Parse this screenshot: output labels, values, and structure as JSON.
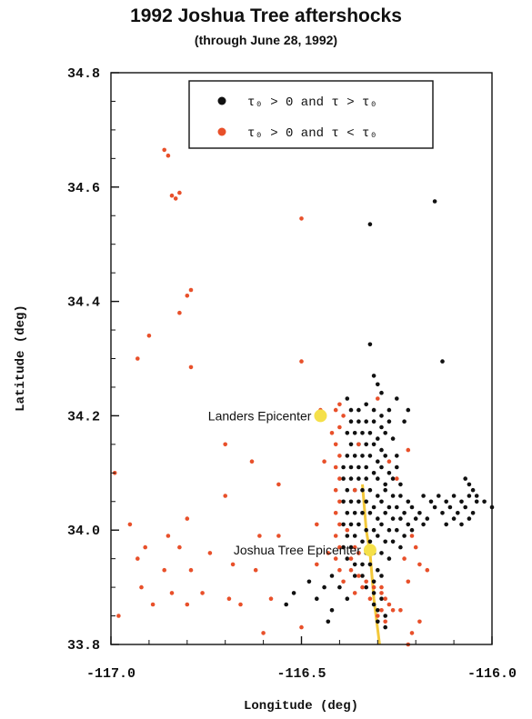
{
  "chart_data": {
    "type": "scatter",
    "title": "1992 Joshua Tree aftershocks",
    "subtitle": "(through June 28, 1992)",
    "xlabel": "Longitude (deg)",
    "ylabel": "Latitude (deg)",
    "xlim": [
      -117.0,
      -116.0
    ],
    "ylim": [
      33.8,
      34.8
    ],
    "xticks": [
      {
        "value": -117.0,
        "label": "-117.0"
      },
      {
        "value": -116.5,
        "label": "-116.5"
      },
      {
        "value": -116.0,
        "label": "-116.0"
      }
    ],
    "yticks": [
      {
        "value": 33.8,
        "label": "33.8"
      },
      {
        "value": 34.0,
        "label": "34.0"
      },
      {
        "value": 34.2,
        "label": "34.2"
      },
      {
        "value": 34.4,
        "label": "34.4"
      },
      {
        "value": 34.6,
        "label": "34.6"
      },
      {
        "value": 34.8,
        "label": "34.8"
      }
    ],
    "legend": {
      "position": "top-right",
      "entries": [
        {
          "label": "τ₀ > 0 and τ > τ₀",
          "color": "#111111"
        },
        {
          "label": "τ₀ > 0 and τ < τ₀",
          "color": "#e8502a"
        }
      ]
    },
    "colors": {
      "black": "#111111",
      "red": "#e8502a",
      "epicenter": "#f5e04a",
      "fault": "#f3c83a"
    },
    "annotations": [
      {
        "text": "Landers Epicenter",
        "x": -116.45,
        "y": 34.2
      },
      {
        "text": "Joshua Tree Epicenter",
        "x": -116.32,
        "y": 33.965
      }
    ],
    "epicenters": [
      {
        "name": "Landers",
        "x": -116.45,
        "y": 34.2
      },
      {
        "name": "Joshua Tree",
        "x": -116.32,
        "y": 33.965
      }
    ],
    "fault_line": {
      "x": [
        -116.34,
        -116.33,
        -116.32,
        -116.31,
        -116.295
      ],
      "y": [
        34.08,
        34.0,
        33.96,
        33.88,
        33.8
      ]
    },
    "series": [
      {
        "color": "black",
        "points": [
          [
            -116.15,
            34.575
          ],
          [
            -116.32,
            34.535
          ],
          [
            -116.32,
            34.325
          ],
          [
            -116.13,
            34.295
          ],
          [
            -116.31,
            34.27
          ],
          [
            -116.3,
            34.255
          ],
          [
            -116.29,
            34.24
          ],
          [
            -116.25,
            34.23
          ],
          [
            -116.22,
            34.21
          ],
          [
            -116.23,
            34.19
          ],
          [
            -116.38,
            34.23
          ],
          [
            -116.37,
            34.21
          ],
          [
            -116.35,
            34.21
          ],
          [
            -116.33,
            34.22
          ],
          [
            -116.31,
            34.21
          ],
          [
            -116.29,
            34.2
          ],
          [
            -116.27,
            34.21
          ],
          [
            -116.37,
            34.19
          ],
          [
            -116.35,
            34.19
          ],
          [
            -116.33,
            34.19
          ],
          [
            -116.31,
            34.19
          ],
          [
            -116.29,
            34.18
          ],
          [
            -116.27,
            34.19
          ],
          [
            -116.38,
            34.17
          ],
          [
            -116.36,
            34.17
          ],
          [
            -116.34,
            34.17
          ],
          [
            -116.32,
            34.17
          ],
          [
            -116.3,
            34.16
          ],
          [
            -116.28,
            34.17
          ],
          [
            -116.26,
            34.16
          ],
          [
            -116.37,
            34.15
          ],
          [
            -116.35,
            34.15
          ],
          [
            -116.33,
            34.15
          ],
          [
            -116.31,
            34.15
          ],
          [
            -116.29,
            34.14
          ],
          [
            -116.38,
            34.13
          ],
          [
            -116.36,
            34.13
          ],
          [
            -116.34,
            34.13
          ],
          [
            -116.32,
            34.13
          ],
          [
            -116.3,
            34.12
          ],
          [
            -116.28,
            34.13
          ],
          [
            -116.25,
            34.13
          ],
          [
            -116.39,
            34.11
          ],
          [
            -116.37,
            34.11
          ],
          [
            -116.35,
            34.11
          ],
          [
            -116.33,
            34.11
          ],
          [
            -116.31,
            34.1
          ],
          [
            -116.29,
            34.11
          ],
          [
            -116.27,
            34.1
          ],
          [
            -116.25,
            34.11
          ],
          [
            -116.39,
            34.09
          ],
          [
            -116.37,
            34.09
          ],
          [
            -116.35,
            34.09
          ],
          [
            -116.33,
            34.09
          ],
          [
            -116.3,
            34.09
          ],
          [
            -116.28,
            34.08
          ],
          [
            -116.26,
            34.09
          ],
          [
            -116.24,
            34.08
          ],
          [
            -116.38,
            34.07
          ],
          [
            -116.36,
            34.07
          ],
          [
            -116.34,
            34.07
          ],
          [
            -116.32,
            34.07
          ],
          [
            -116.3,
            34.06
          ],
          [
            -116.28,
            34.07
          ],
          [
            -116.26,
            34.06
          ],
          [
            -116.24,
            34.06
          ],
          [
            -116.22,
            34.05
          ],
          [
            -116.39,
            34.05
          ],
          [
            -116.37,
            34.05
          ],
          [
            -116.35,
            34.05
          ],
          [
            -116.33,
            34.05
          ],
          [
            -116.31,
            34.04
          ],
          [
            -116.29,
            34.05
          ],
          [
            -116.27,
            34.04
          ],
          [
            -116.25,
            34.04
          ],
          [
            -116.23,
            34.03
          ],
          [
            -116.21,
            34.04
          ],
          [
            -116.38,
            34.03
          ],
          [
            -116.36,
            34.03
          ],
          [
            -116.34,
            34.03
          ],
          [
            -116.32,
            34.03
          ],
          [
            -116.3,
            34.02
          ],
          [
            -116.28,
            34.03
          ],
          [
            -116.26,
            34.02
          ],
          [
            -116.24,
            34.02
          ],
          [
            -116.22,
            34.01
          ],
          [
            -116.2,
            34.02
          ],
          [
            -116.39,
            34.01
          ],
          [
            -116.37,
            34.01
          ],
          [
            -116.35,
            34.01
          ],
          [
            -116.33,
            34.0
          ],
          [
            -116.31,
            34.0
          ],
          [
            -116.29,
            34.01
          ],
          [
            -116.27,
            34.0
          ],
          [
            -116.25,
            34.0
          ],
          [
            -116.23,
            33.99
          ],
          [
            -116.21,
            34.0
          ],
          [
            -116.38,
            33.99
          ],
          [
            -116.36,
            33.99
          ],
          [
            -116.34,
            33.98
          ],
          [
            -116.32,
            33.98
          ],
          [
            -116.3,
            33.99
          ],
          [
            -116.28,
            33.98
          ],
          [
            -116.26,
            33.98
          ],
          [
            -116.24,
            33.97
          ],
          [
            -116.39,
            33.97
          ],
          [
            -116.37,
            33.97
          ],
          [
            -116.35,
            33.96
          ],
          [
            -116.33,
            33.96
          ],
          [
            -116.31,
            33.96
          ],
          [
            -116.29,
            33.96
          ],
          [
            -116.27,
            33.95
          ],
          [
            -116.38,
            33.95
          ],
          [
            -116.36,
            33.94
          ],
          [
            -116.34,
            33.94
          ],
          [
            -116.32,
            33.94
          ],
          [
            -116.3,
            33.93
          ],
          [
            -116.36,
            33.92
          ],
          [
            -116.34,
            33.92
          ],
          [
            -116.31,
            33.91
          ],
          [
            -116.29,
            33.92
          ],
          [
            -116.33,
            33.9
          ],
          [
            -116.31,
            33.89
          ],
          [
            -116.29,
            33.88
          ],
          [
            -116.31,
            33.87
          ],
          [
            -116.3,
            33.86
          ],
          [
            -116.28,
            33.85
          ],
          [
            -116.3,
            33.84
          ],
          [
            -116.28,
            33.83
          ],
          [
            -116.42,
            33.92
          ],
          [
            -116.44,
            33.9
          ],
          [
            -116.46,
            33.88
          ],
          [
            -116.48,
            33.91
          ],
          [
            -116.52,
            33.89
          ],
          [
            -116.54,
            33.87
          ],
          [
            -116.42,
            33.86
          ],
          [
            -116.43,
            33.84
          ],
          [
            -116.4,
            33.9
          ],
          [
            -116.38,
            33.88
          ],
          [
            -116.18,
            34.06
          ],
          [
            -116.16,
            34.05
          ],
          [
            -116.14,
            34.06
          ],
          [
            -116.12,
            34.05
          ],
          [
            -116.1,
            34.06
          ],
          [
            -116.08,
            34.05
          ],
          [
            -116.06,
            34.06
          ],
          [
            -116.04,
            34.05
          ],
          [
            -116.02,
            34.05
          ],
          [
            -116.0,
            34.04
          ],
          [
            -116.15,
            34.04
          ],
          [
            -116.13,
            34.03
          ],
          [
            -116.11,
            34.04
          ],
          [
            -116.09,
            34.03
          ],
          [
            -116.07,
            34.04
          ],
          [
            -116.05,
            34.03
          ],
          [
            -116.1,
            34.02
          ],
          [
            -116.08,
            34.01
          ],
          [
            -116.12,
            34.01
          ],
          [
            -116.06,
            34.02
          ],
          [
            -116.07,
            34.09
          ],
          [
            -116.06,
            34.08
          ],
          [
            -116.05,
            34.07
          ],
          [
            -116.04,
            34.06
          ],
          [
            -116.17,
            34.02
          ],
          [
            -116.19,
            34.03
          ],
          [
            -116.18,
            34.01
          ]
        ]
      },
      {
        "color": "red",
        "points": [
          [
            -116.86,
            34.665
          ],
          [
            -116.85,
            34.655
          ],
          [
            -116.82,
            34.59
          ],
          [
            -116.84,
            34.585
          ],
          [
            -116.83,
            34.58
          ],
          [
            -116.5,
            34.545
          ],
          [
            -116.79,
            34.42
          ],
          [
            -116.8,
            34.41
          ],
          [
            -116.82,
            34.38
          ],
          [
            -116.9,
            34.34
          ],
          [
            -116.93,
            34.3
          ],
          [
            -116.79,
            34.285
          ],
          [
            -116.5,
            34.295
          ],
          [
            -116.99,
            34.1
          ],
          [
            -116.7,
            34.15
          ],
          [
            -116.63,
            34.12
          ],
          [
            -116.56,
            34.08
          ],
          [
            -116.7,
            34.06
          ],
          [
            -116.8,
            34.02
          ],
          [
            -116.95,
            34.01
          ],
          [
            -116.85,
            33.99
          ],
          [
            -116.61,
            33.99
          ],
          [
            -116.56,
            33.99
          ],
          [
            -116.91,
            33.97
          ],
          [
            -116.82,
            33.97
          ],
          [
            -116.74,
            33.96
          ],
          [
            -116.93,
            33.95
          ],
          [
            -116.68,
            33.94
          ],
          [
            -116.62,
            33.93
          ],
          [
            -116.86,
            33.93
          ],
          [
            -116.79,
            33.93
          ],
          [
            -116.92,
            33.9
          ],
          [
            -116.84,
            33.89
          ],
          [
            -116.76,
            33.89
          ],
          [
            -116.69,
            33.88
          ],
          [
            -116.58,
            33.88
          ],
          [
            -116.89,
            33.87
          ],
          [
            -116.8,
            33.87
          ],
          [
            -116.66,
            33.87
          ],
          [
            -116.98,
            33.85
          ],
          [
            -116.6,
            33.82
          ],
          [
            -116.5,
            33.83
          ],
          [
            -116.4,
            34.22
          ],
          [
            -116.41,
            34.21
          ],
          [
            -116.39,
            34.2
          ],
          [
            -116.4,
            34.18
          ],
          [
            -116.42,
            34.17
          ],
          [
            -116.41,
            34.15
          ],
          [
            -116.4,
            34.13
          ],
          [
            -116.41,
            34.11
          ],
          [
            -116.4,
            34.09
          ],
          [
            -116.41,
            34.07
          ],
          [
            -116.4,
            34.05
          ],
          [
            -116.41,
            34.03
          ],
          [
            -116.4,
            34.01
          ],
          [
            -116.41,
            33.99
          ],
          [
            -116.4,
            33.97
          ],
          [
            -116.41,
            33.95
          ],
          [
            -116.4,
            33.93
          ],
          [
            -116.39,
            33.91
          ],
          [
            -116.37,
            33.93
          ],
          [
            -116.35,
            33.92
          ],
          [
            -116.33,
            33.91
          ],
          [
            -116.31,
            33.9
          ],
          [
            -116.29,
            33.9
          ],
          [
            -116.28,
            33.88
          ],
          [
            -116.29,
            33.86
          ],
          [
            -116.28,
            33.84
          ],
          [
            -116.3,
            33.85
          ],
          [
            -116.32,
            33.88
          ],
          [
            -116.27,
            33.87
          ],
          [
            -116.29,
            33.89
          ],
          [
            -116.26,
            33.86
          ],
          [
            -116.35,
            33.96
          ],
          [
            -116.37,
            33.95
          ],
          [
            -116.36,
            33.97
          ],
          [
            -116.38,
            34.0
          ],
          [
            -116.25,
            34.09
          ],
          [
            -116.27,
            34.12
          ],
          [
            -116.22,
            34.14
          ],
          [
            -116.21,
            33.99
          ],
          [
            -116.2,
            33.97
          ],
          [
            -116.23,
            33.95
          ],
          [
            -116.19,
            33.94
          ],
          [
            -116.22,
            33.91
          ],
          [
            -116.17,
            33.93
          ],
          [
            -116.22,
            33.8
          ],
          [
            -116.19,
            33.84
          ],
          [
            -116.24,
            33.86
          ],
          [
            -116.21,
            33.82
          ],
          [
            -116.45,
            34.21
          ],
          [
            -116.44,
            34.12
          ],
          [
            -116.46,
            34.01
          ],
          [
            -116.43,
            33.96
          ],
          [
            -116.46,
            33.94
          ],
          [
            -116.36,
            34.07
          ],
          [
            -116.35,
            34.15
          ],
          [
            -116.3,
            34.23
          ],
          [
            -116.34,
            33.9
          ],
          [
            -116.36,
            33.89
          ]
        ]
      }
    ]
  }
}
